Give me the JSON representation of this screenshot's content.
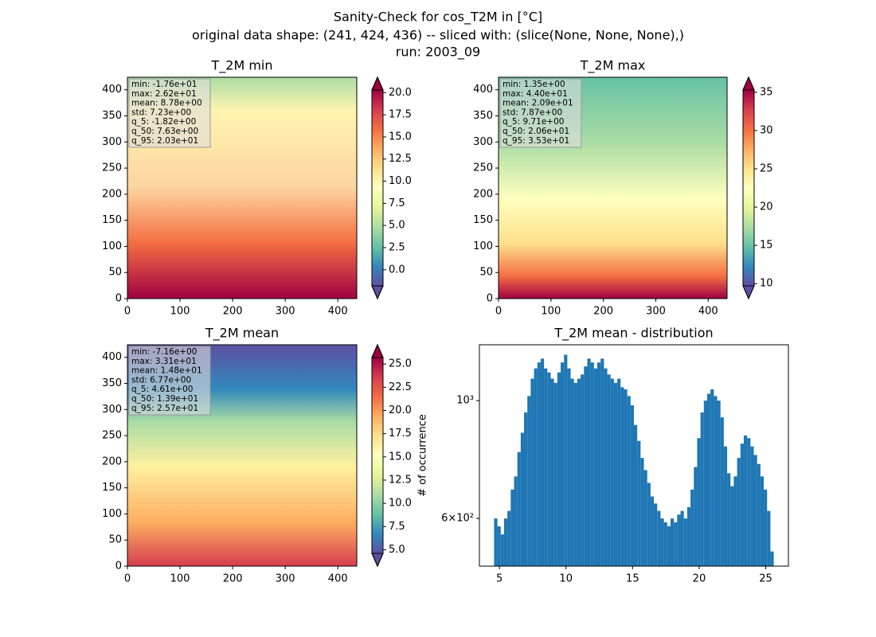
{
  "figure": {
    "title": [
      "Sanity-Check for cos_T2M in [°C]",
      "original data shape: (241, 424, 436) -- sliced with: (slice(None, None, None),)",
      "run: 2003_09"
    ]
  },
  "chart_data": [
    {
      "type": "heatmap",
      "title": "T_2M min",
      "xlim": [
        0,
        436
      ],
      "ylim": [
        0,
        424
      ],
      "xticks": [
        0,
        100,
        200,
        300,
        400
      ],
      "yticks": [
        0,
        50,
        100,
        150,
        200,
        250,
        300,
        350,
        400
      ],
      "stats": [
        "min: -1.76e+01",
        "max: 2.62e+01",
        "mean: 8.78e+00",
        "std: 7.23e+00",
        "q_5: -1.82e+00",
        "q_50: 7.63e+00",
        "q_95: 2.03e+01"
      ],
      "colorbar": {
        "lim": [
          -1.82,
          20.3
        ],
        "extend": "both",
        "ticks": [
          {
            "value": 0,
            "label": "0.0"
          },
          {
            "value": 2.5,
            "label": "2.5"
          },
          {
            "value": 5,
            "label": "5.0"
          },
          {
            "value": 7.5,
            "label": "7.5"
          },
          {
            "value": 10,
            "label": "10.0"
          },
          {
            "value": 12.5,
            "label": "12.5"
          },
          {
            "value": 15,
            "label": "15.0"
          },
          {
            "value": 17.5,
            "label": "17.5"
          },
          {
            "value": 20,
            "label": "20.0"
          }
        ]
      }
    },
    {
      "type": "heatmap",
      "title": "T_2M max",
      "xlim": [
        0,
        436
      ],
      "ylim": [
        0,
        424
      ],
      "xticks": [
        0,
        100,
        200,
        300,
        400
      ],
      "yticks": [
        0,
        50,
        100,
        150,
        200,
        250,
        300,
        350,
        400
      ],
      "stats": [
        "min: 1.35e+00",
        "max: 4.40e+01",
        "mean: 2.09e+01",
        "std: 7.87e+00",
        "q_5: 9.71e+00",
        "q_50: 2.06e+01",
        "q_95: 3.53e+01"
      ],
      "colorbar": {
        "lim": [
          9.71,
          35.3
        ],
        "extend": "both",
        "ticks": [
          10,
          15,
          20,
          25,
          30,
          35
        ]
      }
    },
    {
      "type": "heatmap",
      "title": "T_2M mean",
      "xlim": [
        0,
        436
      ],
      "ylim": [
        0,
        424
      ],
      "xticks": [
        0,
        100,
        200,
        300,
        400
      ],
      "yticks": [
        0,
        50,
        100,
        150,
        200,
        250,
        300,
        350,
        400
      ],
      "stats": [
        "min: -7.16e+00",
        "max: 3.31e+01",
        "mean: 1.48e+01",
        "std: 6.77e+00",
        "q_5: 4.61e+00",
        "q_50: 1.39e+01",
        "q_95: 2.57e+01"
      ],
      "colorbar": {
        "lim": [
          4.61,
          25.7
        ],
        "extend": "both",
        "ticks": [
          {
            "value": 5,
            "label": "5.0"
          },
          {
            "value": 7.5,
            "label": "7.5"
          },
          {
            "value": 10,
            "label": "10.0"
          },
          {
            "value": 12.5,
            "label": "12.5"
          },
          {
            "value": 15,
            "label": "15.0"
          },
          {
            "value": 17.5,
            "label": "17.5"
          },
          {
            "value": 20,
            "label": "20.0"
          },
          {
            "value": 22.5,
            "label": "22.5"
          },
          {
            "value": 25,
            "label": "25.0"
          }
        ]
      }
    },
    {
      "type": "histogram",
      "title": "T_2M mean - distribution",
      "ylabel": "# of occurrence",
      "color": "#1f77b4",
      "yscale": "log",
      "xlim": [
        3.5,
        26.7
      ],
      "ylim": [
        488,
        1274
      ],
      "xticks": [
        5,
        10,
        15,
        20,
        25
      ],
      "yticks": [
        {
          "value": 600,
          "label": "6×10²"
        },
        {
          "value": 1000,
          "label": "10³"
        }
      ],
      "bins": [
        4.6,
        4.85,
        5.1,
        5.35,
        5.6,
        5.85,
        6.1,
        6.35,
        6.6,
        6.85,
        7.1,
        7.35,
        7.6,
        7.85,
        8.1,
        8.35,
        8.6,
        8.85,
        9.1,
        9.35,
        9.6,
        9.85,
        10.1,
        10.35,
        10.6,
        10.85,
        11.1,
        11.35,
        11.6,
        11.85,
        12.1,
        12.35,
        12.6,
        12.85,
        13.1,
        13.35,
        13.6,
        13.85,
        14.1,
        14.35,
        14.6,
        14.85,
        15.1,
        15.35,
        15.6,
        15.85,
        16.1,
        16.35,
        16.6,
        16.85,
        17.1,
        17.35,
        17.6,
        17.85,
        18.1,
        18.35,
        18.6,
        18.85,
        19.1,
        19.35,
        19.6,
        19.85,
        20.1,
        20.35,
        20.6,
        20.85,
        21.1,
        21.35,
        21.6,
        21.85,
        22.1,
        22.35,
        22.6,
        22.85,
        23.1,
        23.35,
        23.6,
        23.85,
        24.1,
        24.35,
        24.6,
        24.85,
        25.1,
        25.35,
        25.6
      ],
      "values": [
        600,
        580,
        560,
        600,
        620,
        680,
        720,
        800,
        870,
        950,
        1020,
        1100,
        1150,
        1180,
        1200,
        1150,
        1130,
        1100,
        1080,
        1130,
        1180,
        1220,
        1150,
        1100,
        1080,
        1100,
        1120,
        1160,
        1200,
        1180,
        1150,
        1180,
        1200,
        1150,
        1120,
        1100,
        1080,
        1100,
        1060,
        1050,
        1020,
        980,
        900,
        840,
        780,
        740,
        700,
        660,
        640,
        620,
        600,
        590,
        580,
        600,
        590,
        610,
        620,
        600,
        630,
        680,
        750,
        850,
        950,
        1000,
        1030,
        1050,
        1020,
        1000,
        930,
        820,
        730,
        690,
        720,
        780,
        830,
        860,
        850,
        820,
        790,
        760,
        720,
        680,
        620,
        520
      ]
    }
  ]
}
